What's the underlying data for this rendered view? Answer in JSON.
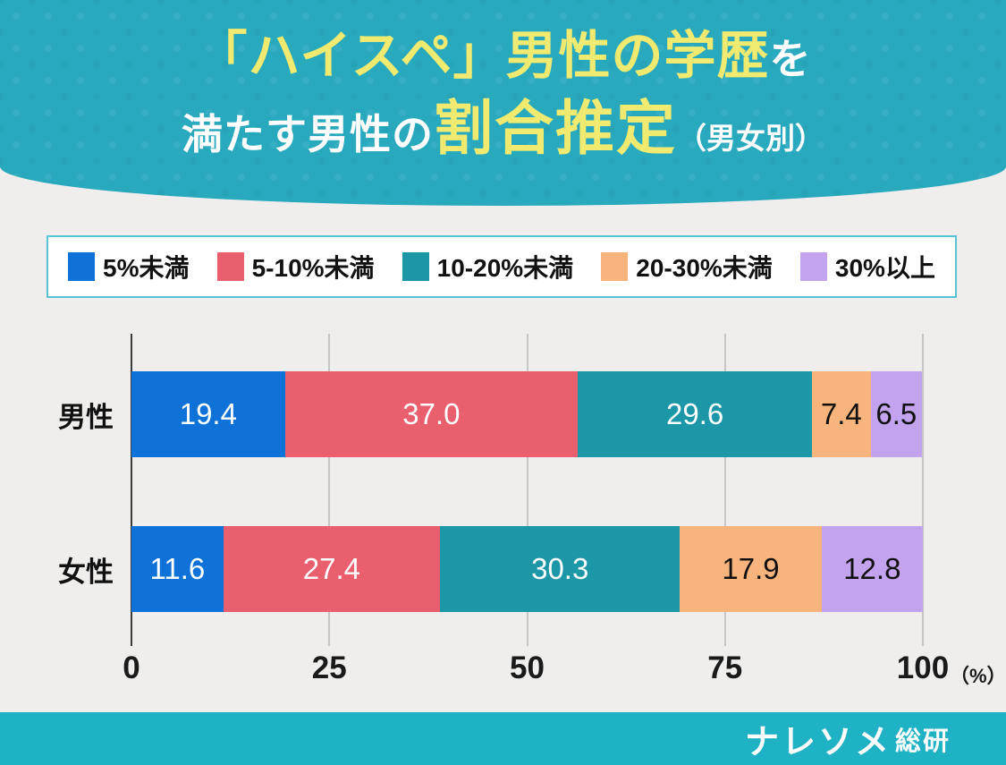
{
  "title": {
    "line1_main": "「ハイスペ」男性の学歴",
    "line1_suffix": "を",
    "line2_prefix": "満たす男性の",
    "line2_main": "割合推定",
    "line2_suffix": "（男女別）"
  },
  "colors": {
    "header_teal": "#29a9be",
    "footer_teal": "#1fb2c4",
    "background": "#efeeed",
    "title_yellow": "#f0eb70",
    "legend_border": "#58c3d6",
    "axis_line": "#3c3c3c",
    "gridline": "#c6c6c6"
  },
  "chart_data": {
    "type": "bar",
    "orientation": "horizontal-stacked",
    "categories": [
      "男性",
      "女性"
    ],
    "series": [
      {
        "name": "5%未満",
        "color": "#0e72d8",
        "text_color": "#ffffff",
        "values": [
          19.4,
          11.6
        ],
        "labels": [
          "19.4",
          "11.6"
        ]
      },
      {
        "name": "5-10%未満",
        "color": "#e95f6e",
        "text_color": "#ffffff",
        "values": [
          37.0,
          27.4
        ],
        "labels": [
          "37.0",
          "27.4"
        ]
      },
      {
        "name": "10-20%未満",
        "color": "#1b97a8",
        "text_color": "#ffffff",
        "values": [
          29.6,
          30.3
        ],
        "labels": [
          "29.6",
          "30.3"
        ]
      },
      {
        "name": "20-30%未満",
        "color": "#f7b47c",
        "text_color": "#111111",
        "values": [
          7.4,
          17.9
        ],
        "labels": [
          "7.4",
          "17.9"
        ]
      },
      {
        "name": "30%以上",
        "color": "#c3a2ee",
        "text_color": "#111111",
        "values": [
          6.5,
          12.8
        ],
        "labels": [
          "6.5",
          "12.8"
        ]
      }
    ],
    "x_ticks": [
      0,
      25,
      50,
      75,
      100
    ],
    "x_unit": "（%）",
    "xlim": [
      0,
      100
    ],
    "grid": true,
    "legend_position": "top"
  },
  "footer": {
    "logo_main": "ナレソメ",
    "logo_sub": "総研"
  }
}
